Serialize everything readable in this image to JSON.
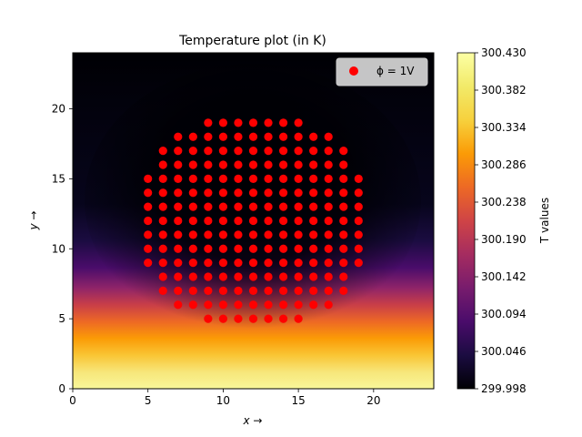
{
  "chart_data": {
    "type": "heatmap",
    "title": "Temperature plot (in K)",
    "xlabel": "x →",
    "ylabel": "y →",
    "xlim": [
      0,
      24
    ],
    "ylim": [
      0,
      24
    ],
    "xticks": [
      0,
      5,
      10,
      15,
      20
    ],
    "yticks": [
      0,
      5,
      10,
      15,
      20
    ],
    "legend": {
      "placement": "top-right",
      "entries": [
        {
          "label": "ϕ = 1V",
          "marker": "circle",
          "color": "#ff0000"
        }
      ]
    },
    "colorbar": {
      "label": "T values",
      "colormap": "inferno",
      "range": [
        299.998,
        300.43
      ],
      "ticks": [
        "299.998",
        "300.046",
        "300.094",
        "300.142",
        "300.190",
        "300.238",
        "300.286",
        "300.334",
        "300.382",
        "300.430"
      ]
    },
    "electrode_rows": [
      {
        "y": 19,
        "x_from": 9,
        "x_to": 15
      },
      {
        "y": 18,
        "x_from": 7,
        "x_to": 17
      },
      {
        "y": 17,
        "x_from": 6,
        "x_to": 18
      },
      {
        "y": 16,
        "x_from": 6,
        "x_to": 18
      },
      {
        "y": 15,
        "x_from": 5,
        "x_to": 19
      },
      {
        "y": 14,
        "x_from": 5,
        "x_to": 19
      },
      {
        "y": 13,
        "x_from": 5,
        "x_to": 19
      },
      {
        "y": 12,
        "x_from": 5,
        "x_to": 19
      },
      {
        "y": 11,
        "x_from": 5,
        "x_to": 19
      },
      {
        "y": 10,
        "x_from": 5,
        "x_to": 19
      },
      {
        "y": 9,
        "x_from": 5,
        "x_to": 19
      },
      {
        "y": 8,
        "x_from": 6,
        "x_to": 18
      },
      {
        "y": 7,
        "x_from": 6,
        "x_to": 18
      },
      {
        "y": 6,
        "x_from": 7,
        "x_to": 17
      },
      {
        "y": 5,
        "x_from": 9,
        "x_to": 15
      }
    ]
  }
}
